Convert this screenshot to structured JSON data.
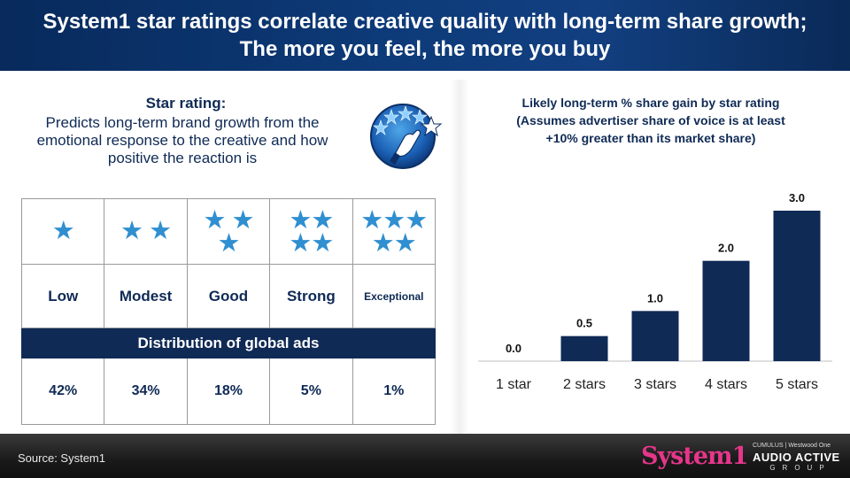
{
  "header": {
    "title": "System1 star ratings correlate creative quality with long-term share growth; The more you feel, the more you buy"
  },
  "info": {
    "star_title": "Star rating:",
    "star_desc": "Predicts long-term brand growth from the emotional response to the creative and how positive the reaction is"
  },
  "table": {
    "labels": [
      "Low",
      "Modest",
      "Good",
      "Strong",
      "Exceptional"
    ],
    "distribution_header": "Distribution of global ads",
    "distribution": [
      "42%",
      "34%",
      "18%",
      "5%",
      "1%"
    ],
    "star_counts": [
      1,
      2,
      3,
      4,
      5
    ],
    "star_color": "#2f8fd0"
  },
  "chart_data": {
    "type": "bar",
    "title": "Likely long-term % share gain by star rating (Assumes advertiser share of voice is at least +10% greater than its market share)",
    "title_lines": [
      "Likely long-term % share gain by star rating",
      "(Assumes advertiser share of voice is at least",
      "+10% greater than its market share)"
    ],
    "categories": [
      "1 star",
      "2 stars",
      "3 stars",
      "4 stars",
      "5 stars"
    ],
    "values": [
      0.0,
      0.5,
      1.0,
      2.0,
      3.0
    ],
    "data_labels": [
      "0.0",
      "0.5",
      "1.0",
      "2.0",
      "3.0"
    ],
    "xlabel": "",
    "ylabel": "",
    "ylim": [
      0,
      3.0
    ],
    "grid": false,
    "bar_color": "#0f2a55"
  },
  "footer": {
    "source": "Source: System1",
    "logo_system1": "System1",
    "logo_mini": "CUMULUS | Westwood One",
    "logo_audio": "AUDIO ACTIVE",
    "logo_group": "GROUP"
  }
}
